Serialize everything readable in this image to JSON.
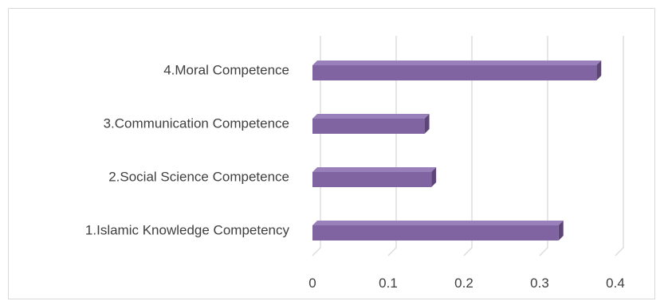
{
  "chart_data": {
    "type": "bar",
    "orientation": "horizontal",
    "style": "3d",
    "categories": [
      "1.Islamic Knowledge Competency",
      "2.Social Science Competence",
      "3.Communication Competence",
      "4.Moral Competence"
    ],
    "values": [
      0.325,
      0.157,
      0.148,
      0.375
    ],
    "xlim": [
      0,
      0.4
    ],
    "xticks": [
      "0",
      "0.1",
      "0.2",
      "0.3",
      "0.4"
    ],
    "grid": true,
    "legend": "none",
    "colors": {
      "bar_front": "#8064a2",
      "bar_top": "#9a80bb",
      "bar_side": "#5d4677",
      "gridline": "#d9d9d9",
      "text": "#404040"
    }
  }
}
